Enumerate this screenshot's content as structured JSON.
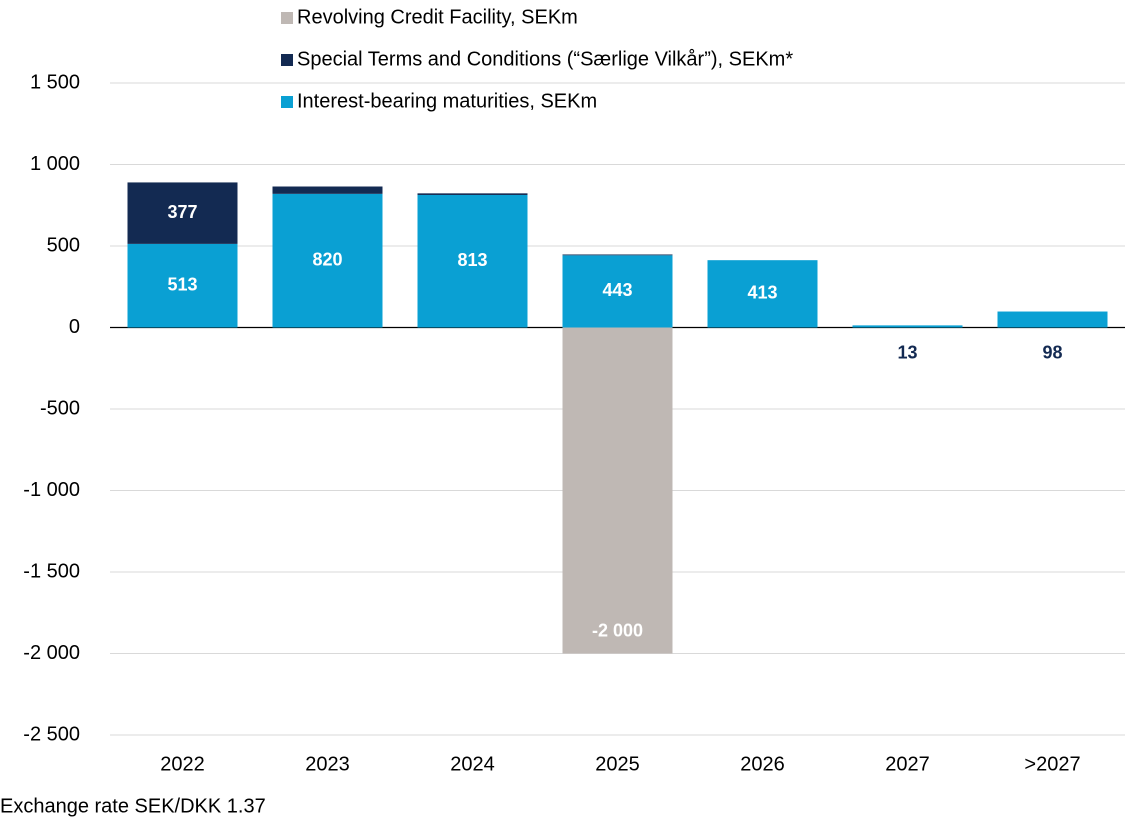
{
  "chart_data": {
    "type": "stacked-bar",
    "categories": [
      "2022",
      "2023",
      "2024",
      "2025",
      "2026",
      "2027",
      ">2027"
    ],
    "series": [
      {
        "name": "Revolving Credit Facility, SEKm",
        "color": "#bfb8b4",
        "values": [
          null,
          null,
          null,
          -2000,
          null,
          null,
          null
        ],
        "value_labels": [
          null,
          null,
          null,
          "-2 000",
          null,
          null,
          null
        ]
      },
      {
        "name": "Special Terms and Conditions (“Særlige Vilkår”), SEKm*",
        "color": "#132a52",
        "values": [
          377,
          45,
          10,
          5,
          null,
          null,
          null
        ],
        "value_labels": [
          "377",
          null,
          null,
          null,
          null,
          null,
          null
        ]
      },
      {
        "name": "Interest-bearing maturities, SEKm",
        "color": "#0aa0d3",
        "values": [
          513,
          820,
          813,
          443,
          413,
          13,
          98
        ],
        "value_labels": [
          "513",
          "820",
          "813",
          "443",
          "413",
          "13",
          "98"
        ]
      }
    ],
    "stack_order": [
      2,
      1,
      0
    ],
    "ylim": [
      -2500,
      1500
    ],
    "yticks": [
      {
        "value": -2500,
        "label": "-2 500"
      },
      {
        "value": -2000,
        "label": "-2 000"
      },
      {
        "value": -1500,
        "label": "-1 500"
      },
      {
        "value": -1000,
        "label": "-1 000"
      },
      -500,
      0,
      500,
      {
        "value": 1000,
        "label": "1 000"
      },
      {
        "value": 1500,
        "label": "1 500"
      }
    ],
    "grid": true,
    "note": "Exchange rate SEK/DKK 1.37"
  }
}
